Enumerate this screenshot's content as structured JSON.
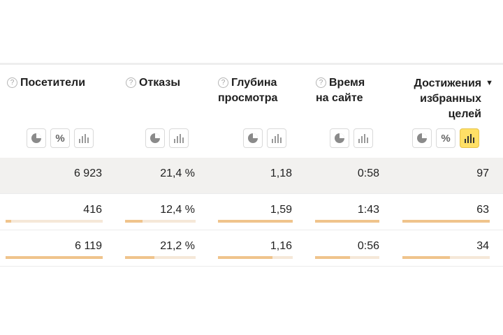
{
  "columns": [
    {
      "id": "visitors",
      "label": "Посетители",
      "help": "?"
    },
    {
      "id": "bounces",
      "label": "Отказы",
      "help": "?"
    },
    {
      "id": "depth",
      "label_line1": "Глубина",
      "label_line2": "просмотра",
      "help": "?"
    },
    {
      "id": "time",
      "label_line1": "Время",
      "label_line2": "на сайте",
      "help": "?"
    },
    {
      "id": "goals",
      "label_line1": "Достижения",
      "label_line2": "избранных",
      "label_line3": "целей",
      "sort": "▼"
    }
  ],
  "view_buttons": {
    "percent_label": "%"
  },
  "rows": [
    {
      "visitors": "6 923",
      "bounces": "21,4 %",
      "depth": "1,18",
      "time": "0:58",
      "goals": "97"
    },
    {
      "visitors": "416",
      "bounces": "12,4 %",
      "depth": "1,59",
      "time": "1:43",
      "goals": "63",
      "bars": {
        "visitors": 0.06,
        "bounces": 0.25,
        "depth": 1.0,
        "time": 1.0,
        "goals": 1.0
      }
    },
    {
      "visitors": "6 119",
      "bounces": "21,2 %",
      "depth": "1,16",
      "time": "0:56",
      "goals": "34",
      "bars": {
        "visitors": 1.0,
        "bounces": 0.42,
        "depth": 0.73,
        "time": 0.54,
        "goals": 0.54
      }
    }
  ]
}
